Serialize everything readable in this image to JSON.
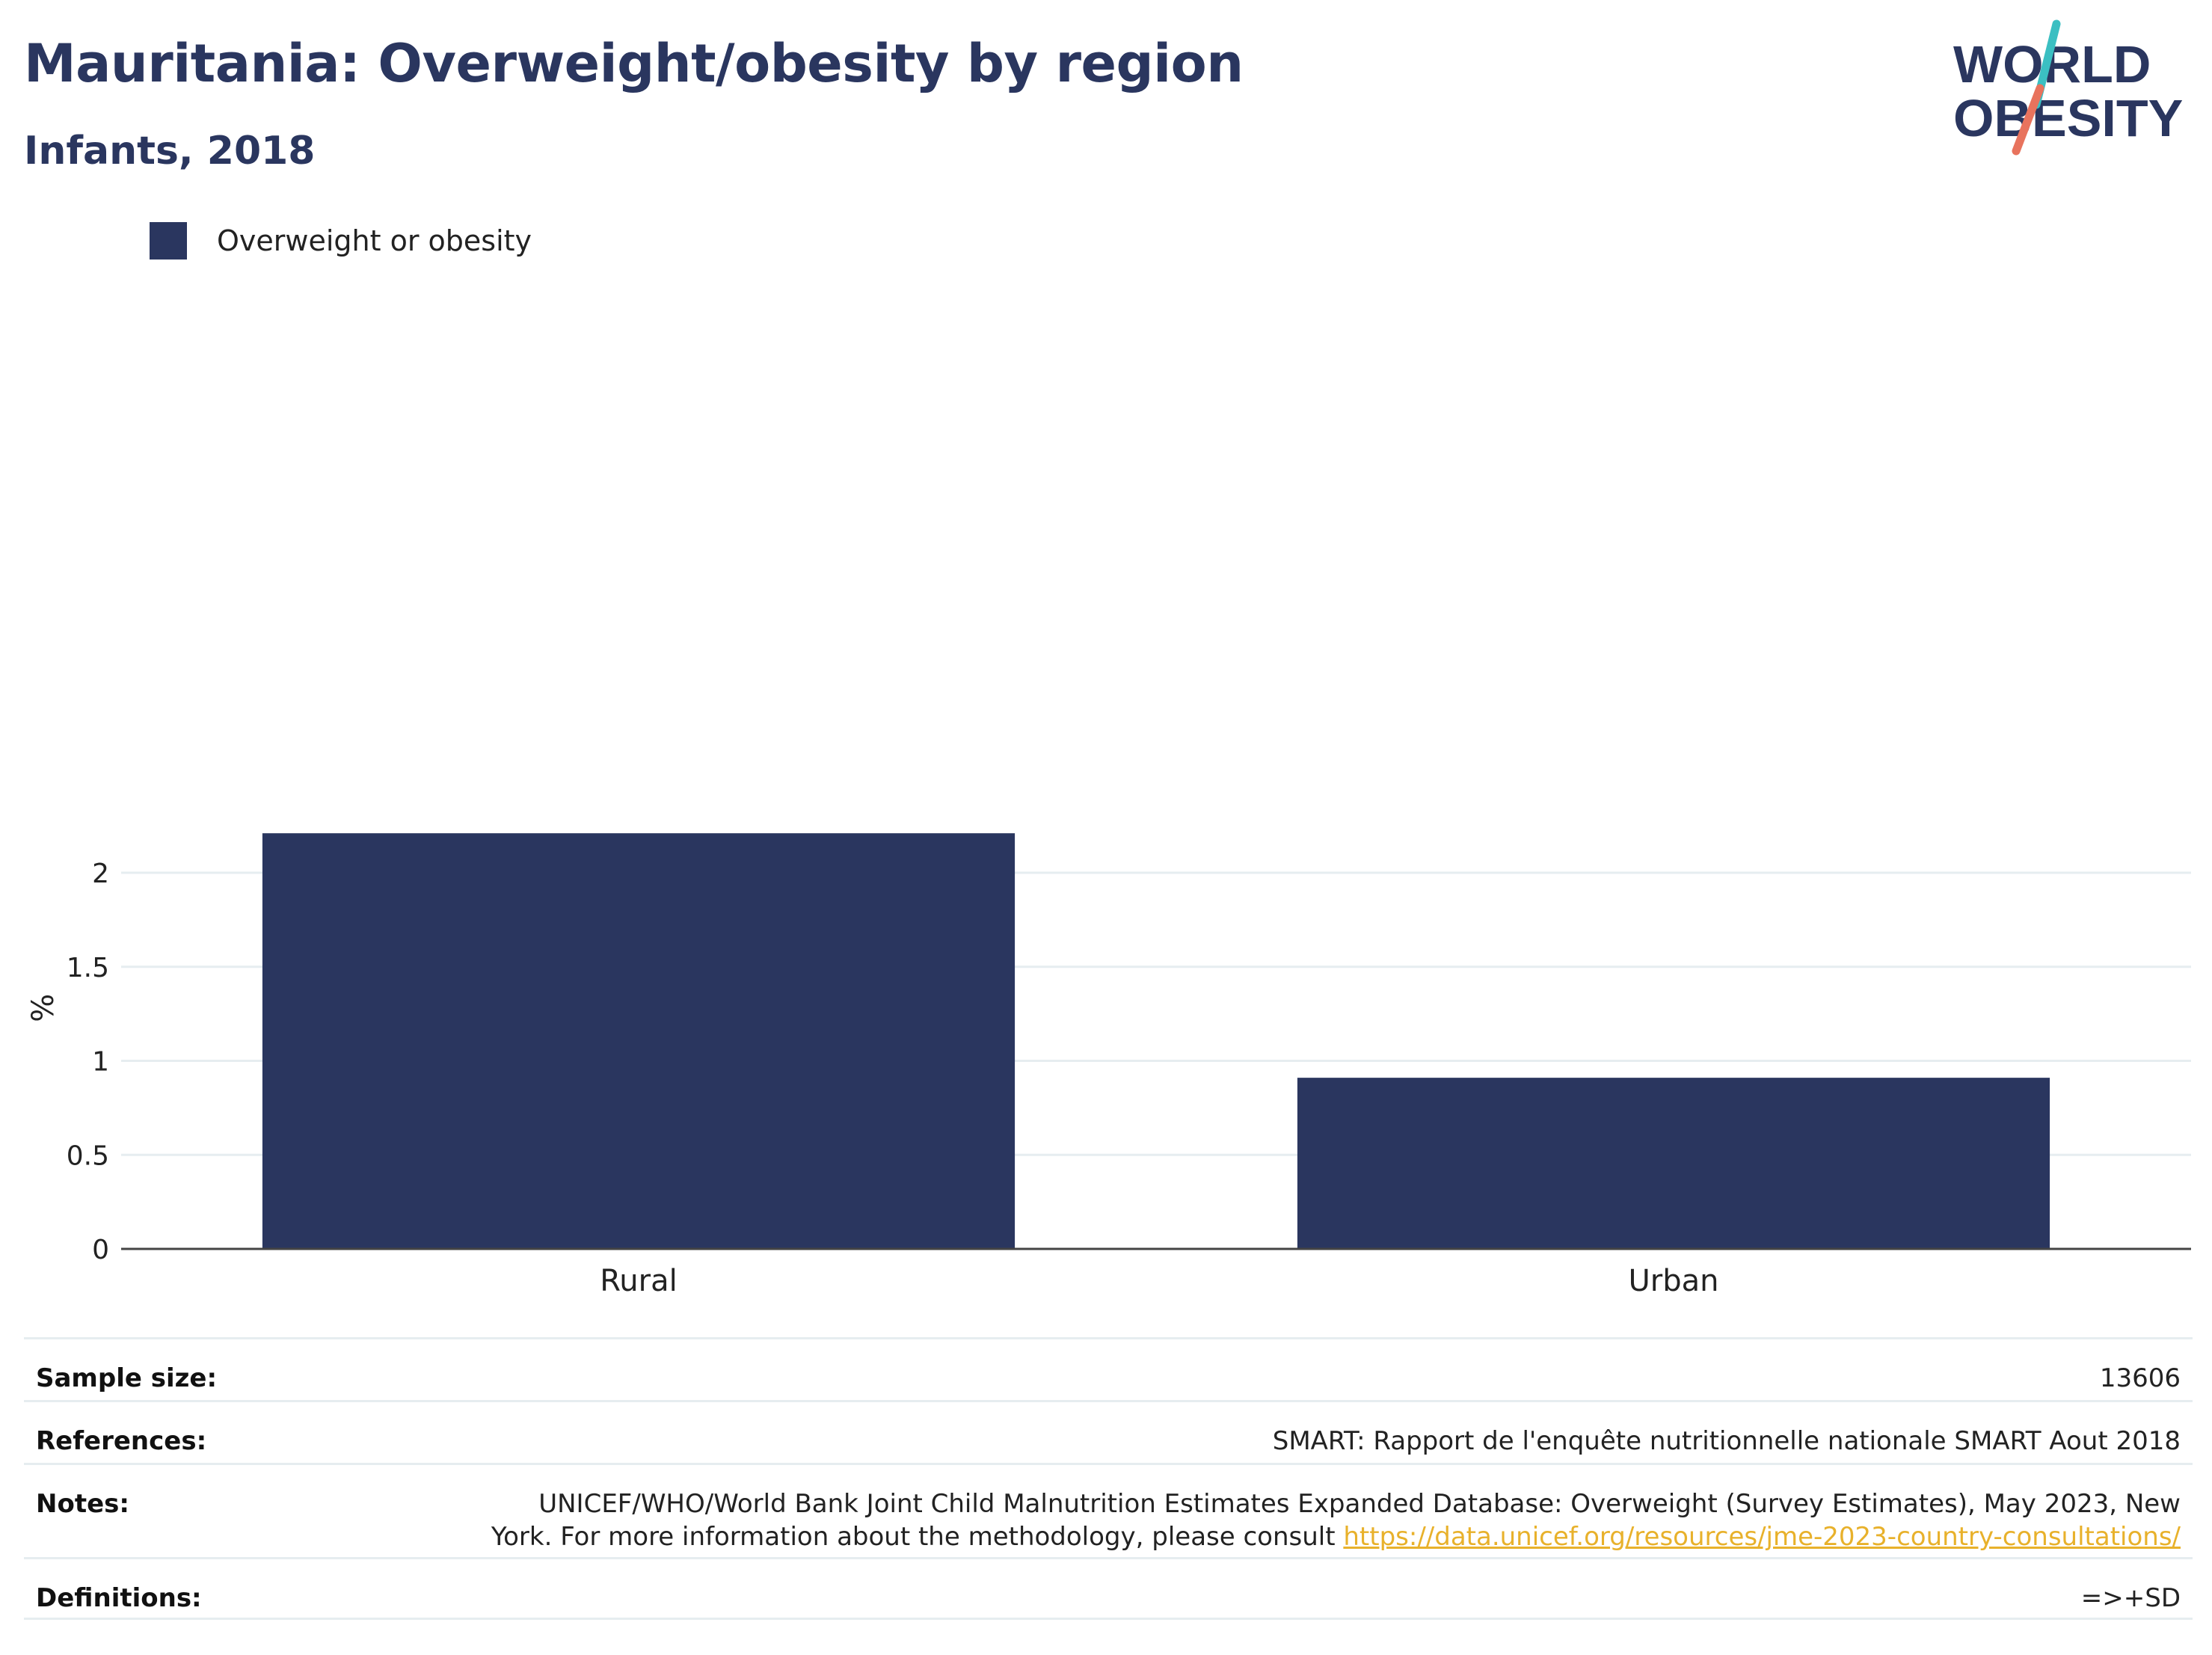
{
  "header": {
    "title": "Mauritania: Overweight/obesity by region",
    "subtitle": "Infants, 2018"
  },
  "logo": {
    "line1": "WORLD",
    "line2": "OBESITY",
    "colors": {
      "text": "#2a365f",
      "slash_top": "#3bbfc2",
      "slash_bottom": "#e8735d"
    }
  },
  "colors": {
    "bar": "#2a365f",
    "gridline": "#e6edf0",
    "axis_line": "#444444",
    "link": "#e8b12b"
  },
  "chart_data": {
    "type": "bar",
    "categories": [
      "Rural",
      "Urban"
    ],
    "series": [
      {
        "name": "Overweight or obesity",
        "values": [
          2.21,
          0.91
        ]
      }
    ],
    "title": "Mauritania: Overweight/obesity by region",
    "subtitle": "Infants, 2018",
    "xlabel": "",
    "ylabel": "%",
    "ylim": [
      0,
      2.4
    ],
    "yticks": [
      0,
      0.5,
      1,
      1.5,
      2
    ],
    "ytick_labels": [
      "0",
      "0.5",
      "1",
      "1.5",
      "2"
    ],
    "grid": true,
    "legend": "top-left"
  },
  "footer": {
    "sample_size": {
      "label": "Sample size:",
      "value": "13606"
    },
    "references": {
      "label": "References:",
      "value": "SMART: Rapport de l'enquête nutritionnelle nationale SMART Aout 2018"
    },
    "notes": {
      "label": "Notes:",
      "line1": "UNICEF/WHO/World Bank Joint Child Malnutrition Estimates Expanded Database: Overweight (Survey Estimates), May 2023, New",
      "line2": "York. For more information about the methodology, please consult ",
      "link": "https://data.unicef.org/resources/jme-2023-country-consultations/"
    },
    "definitions": {
      "label": "Definitions:",
      "value": "=>+SD"
    }
  }
}
